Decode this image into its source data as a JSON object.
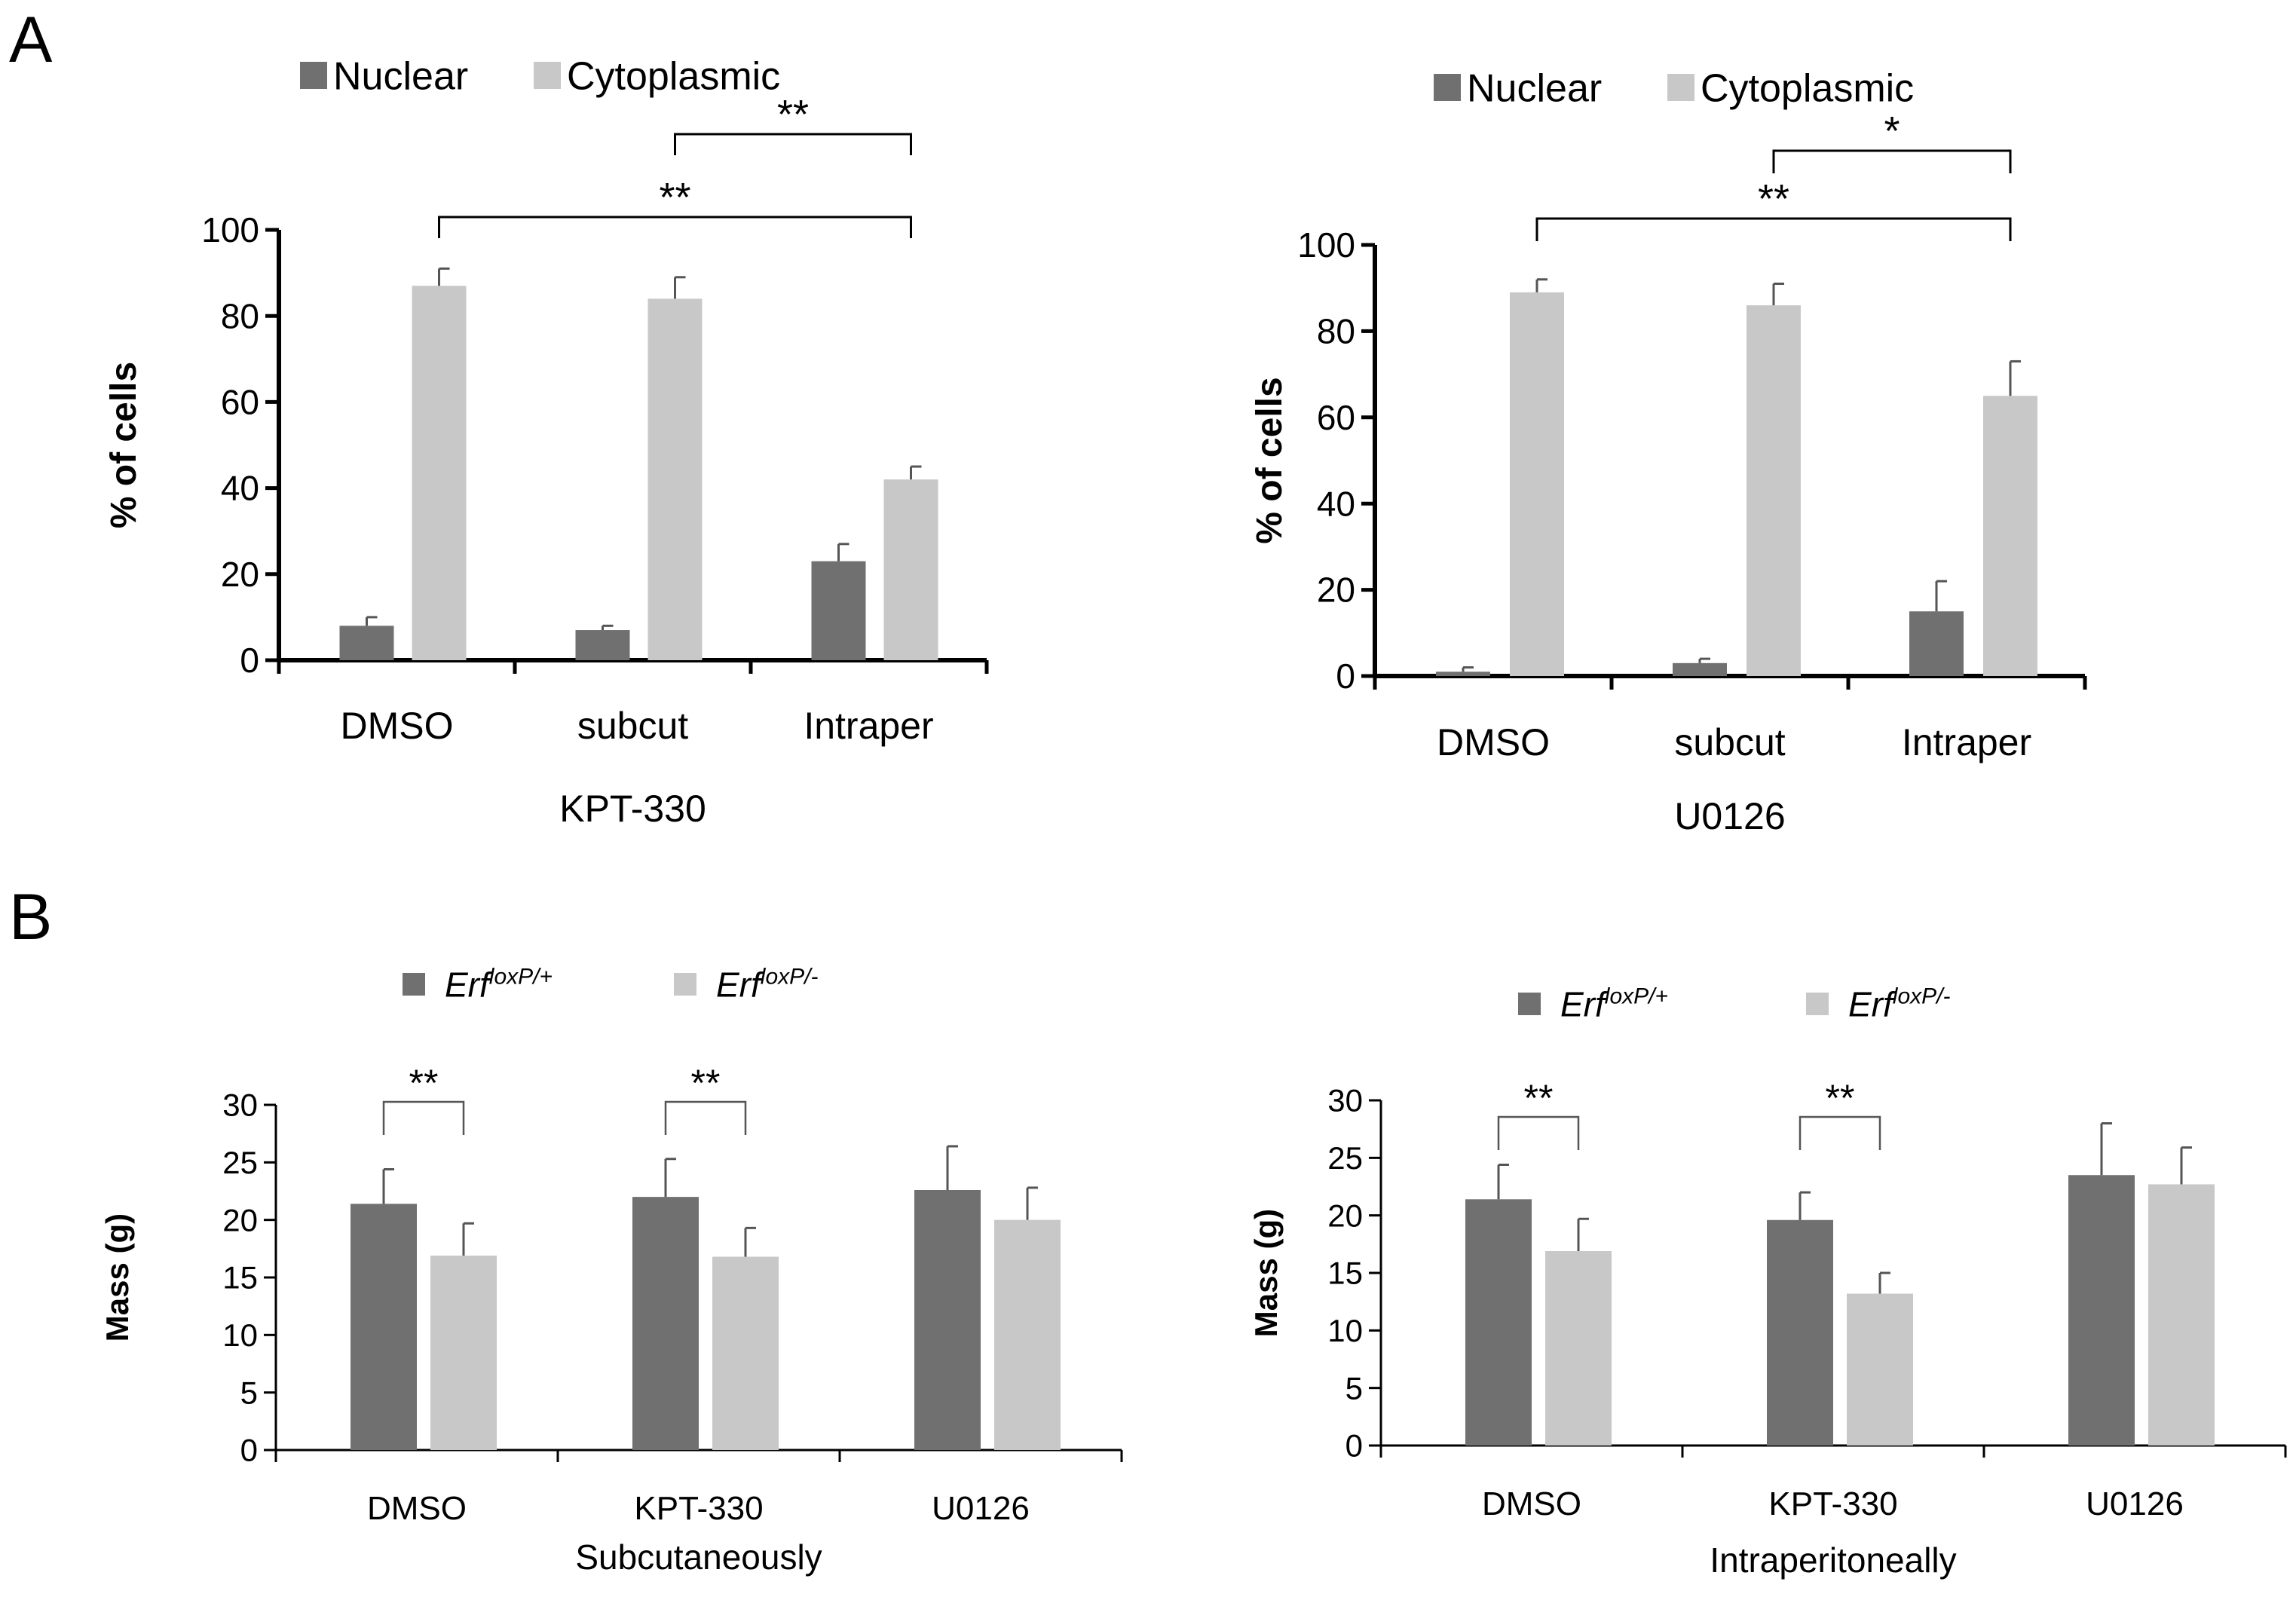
{
  "panel_labels": {
    "a": "A",
    "b": "B"
  },
  "colors": {
    "dark": "#707070",
    "light": "#c8c8c8"
  },
  "chart_data": [
    {
      "id": "a1",
      "type": "bar",
      "panel": "A",
      "categories": [
        "DMSO",
        "subcut",
        "Intraper"
      ],
      "xlabel": "KPT-330",
      "ylabel": "% of cells",
      "ylim": [
        0,
        100
      ],
      "yticks": [
        "0",
        "20",
        "40",
        "60",
        "80",
        "100"
      ],
      "legend": [
        "Nuclear",
        "Cytoplasmic"
      ],
      "series": [
        {
          "name": "Nuclear",
          "values": [
            8,
            7,
            23
          ],
          "errors": [
            2,
            1,
            4
          ]
        },
        {
          "name": "Cytoplasmic",
          "values": [
            87,
            84,
            42
          ],
          "errors": [
            4,
            5,
            3
          ]
        }
      ],
      "brackets": [
        {
          "from": [
            1,
            1
          ],
          "to": [
            2,
            1
          ],
          "label": "**"
        },
        {
          "from": [
            0,
            1
          ],
          "to": [
            2,
            1
          ],
          "label": "**"
        }
      ]
    },
    {
      "id": "a2",
      "type": "bar",
      "panel": "A",
      "categories": [
        "DMSO",
        "subcut",
        "Intraper"
      ],
      "xlabel": "U0126",
      "ylabel": "% of cells",
      "ylim": [
        0,
        100
      ],
      "yticks": [
        "0",
        "20",
        "40",
        "60",
        "80",
        "100"
      ],
      "legend": [
        "Nuclear",
        "Cytoplasmic"
      ],
      "series": [
        {
          "name": "Nuclear",
          "values": [
            1,
            3,
            15
          ],
          "errors": [
            1,
            1,
            7
          ]
        },
        {
          "name": "Cytoplasmic",
          "values": [
            89,
            86,
            65
          ],
          "errors": [
            3,
            5,
            8
          ]
        }
      ],
      "brackets": [
        {
          "from": [
            1,
            1
          ],
          "to": [
            2,
            1
          ],
          "label": "*"
        },
        {
          "from": [
            0,
            1
          ],
          "to": [
            2,
            1
          ],
          "label": "**"
        }
      ]
    },
    {
      "id": "b1",
      "type": "bar",
      "panel": "B",
      "categories": [
        "DMSO",
        "KPT-330",
        "U0126"
      ],
      "xlabel": "Subcutaneously",
      "ylabel": "Mass (g)",
      "ylim": [
        0,
        30
      ],
      "yticks": [
        "0",
        "5",
        "10",
        "15",
        "20",
        "25",
        "30"
      ],
      "legend": [
        {
          "base": "Erf",
          "sup": "loxP/+"
        },
        {
          "base": "Erf",
          "sup": "loxP/-"
        }
      ],
      "series": [
        {
          "name": "Erf loxP/+",
          "values": [
            21.4,
            22,
            22.6
          ],
          "errors": [
            3,
            3.3,
            3.8
          ]
        },
        {
          "name": "Erf loxP/-",
          "values": [
            16.9,
            16.8,
            20
          ],
          "errors": [
            2.8,
            2.5,
            2.8
          ]
        }
      ],
      "brackets": [
        {
          "from": [
            0,
            0
          ],
          "to": [
            0,
            1
          ],
          "label": "**"
        },
        {
          "from": [
            1,
            0
          ],
          "to": [
            1,
            1
          ],
          "label": "**"
        }
      ]
    },
    {
      "id": "b2",
      "type": "bar",
      "panel": "B",
      "categories": [
        "DMSO",
        "KPT-330",
        "U0126"
      ],
      "xlabel": "Intraperitoneally",
      "ylabel": "Mass (g)",
      "ylim": [
        0,
        30
      ],
      "yticks": [
        "0",
        "5",
        "10",
        "15",
        "20",
        "25",
        "30"
      ],
      "legend": [
        {
          "base": "Erf",
          "sup": "loxP/+"
        },
        {
          "base": "Erf",
          "sup": "loxP/-"
        }
      ],
      "series": [
        {
          "name": "Erf loxP/+",
          "values": [
            21.4,
            19.6,
            23.5
          ],
          "errors": [
            3,
            2.4,
            4.5
          ]
        },
        {
          "name": "Erf loxP/-",
          "values": [
            16.9,
            13.2,
            22.7
          ],
          "errors": [
            2.8,
            1.8,
            3.2
          ]
        }
      ],
      "brackets": [
        {
          "from": [
            0,
            0
          ],
          "to": [
            0,
            1
          ],
          "label": "**"
        },
        {
          "from": [
            1,
            0
          ],
          "to": [
            1,
            1
          ],
          "label": "**"
        }
      ]
    }
  ]
}
